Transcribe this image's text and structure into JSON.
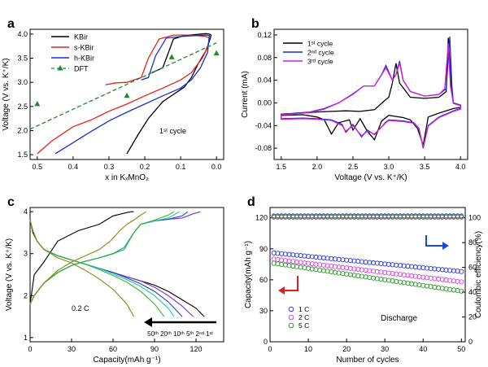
{
  "chart_data": [
    {
      "panel": "a",
      "type": "line",
      "xlabel": "x in KₓMnO₂",
      "ylabel": "Voltage (V vs. K⁺/K)",
      "xlim": [
        0.52,
        -0.02
      ],
      "ylim": [
        1.4,
        4.1
      ],
      "xticks": [
        "0.5",
        "0.4",
        "0.3",
        "0.2",
        "0.1",
        "0.0"
      ],
      "yticks": [
        "1.5",
        "2.0",
        "2.5",
        "3.0",
        "3.5",
        "4.0"
      ],
      "annotation": "1ˢᵗ cycle",
      "legend_position": "top-right",
      "series": [
        {
          "name": "KBir",
          "color": "#000000",
          "x": [
            0.25,
            0.22,
            0.19,
            0.15,
            0.12,
            0.09,
            0.07,
            0.05,
            0.03,
            0.02,
            0.015,
            0.02,
            0.03,
            0.06,
            0.09,
            0.12,
            0.15,
            0.18
          ],
          "y": [
            1.52,
            1.9,
            2.25,
            2.6,
            2.75,
            2.9,
            3.1,
            3.4,
            3.65,
            3.85,
            3.98,
            4.0,
            4.01,
            3.99,
            3.97,
            3.9,
            3.3,
            3.2
          ]
        },
        {
          "name": "s-KBir",
          "color": "#e8201a",
          "x": [
            0.5,
            0.46,
            0.4,
            0.35,
            0.3,
            0.25,
            0.2,
            0.15,
            0.1,
            0.07,
            0.04,
            0.025,
            0.02,
            0.03,
            0.07,
            0.12,
            0.16,
            0.19,
            0.21,
            0.25,
            0.28,
            0.31
          ],
          "y": [
            1.52,
            1.78,
            2.08,
            2.22,
            2.4,
            2.55,
            2.72,
            2.88,
            3.05,
            3.2,
            3.5,
            3.72,
            3.92,
            3.95,
            3.98,
            3.98,
            3.9,
            3.5,
            3.1,
            3.0,
            2.99,
            2.95
          ]
        },
        {
          "name": "h-KBir",
          "color": "#1a2ed8",
          "x": [
            0.45,
            0.4,
            0.35,
            0.3,
            0.25,
            0.2,
            0.15,
            0.1,
            0.07,
            0.045,
            0.025,
            0.02,
            0.03,
            0.06,
            0.1,
            0.14,
            0.17,
            0.19,
            0.21
          ],
          "y": [
            1.52,
            1.75,
            1.98,
            2.2,
            2.38,
            2.55,
            2.72,
            2.88,
            3.05,
            3.3,
            3.62,
            3.97,
            3.98,
            3.97,
            3.95,
            3.92,
            3.55,
            3.1,
            3.05
          ]
        },
        {
          "name": "DFT",
          "color": "#1e8a2e",
          "dashed": true,
          "fit_x": [
            0.52,
            0.0
          ],
          "fit_y": [
            2.03,
            3.82
          ],
          "points_x": [
            0.5,
            0.25,
            0.125,
            0.0
          ],
          "points_y": [
            2.55,
            2.72,
            3.52,
            3.6
          ]
        }
      ]
    },
    {
      "panel": "b",
      "type": "line",
      "xlabel": "Voltage (V vs. K⁺/K)",
      "ylabel": "Current (mA)",
      "xlim": [
        1.4,
        4.1
      ],
      "ylim": [
        -0.1,
        0.13
      ],
      "xticks": [
        "1.5",
        "2.0",
        "2.5",
        "3.0",
        "3.5",
        "4.0"
      ],
      "yticks": [
        "-0.08",
        "-0.04",
        "0.00",
        "0.04",
        "0.08",
        "0.12"
      ],
      "legend_position": "top-left",
      "series": [
        {
          "name": "1ˢᵗ cycle",
          "color": "#000000",
          "x": [
            1.5,
            1.8,
            2.0,
            2.1,
            2.2,
            2.3,
            2.45,
            2.5,
            2.6,
            2.7,
            2.8,
            2.9,
            3.0,
            3.1,
            3.2,
            3.3,
            3.4,
            3.48,
            3.55,
            3.7,
            3.9,
            4.0,
            4.0,
            3.9,
            3.87,
            3.83,
            3.8,
            3.7,
            3.5,
            3.3,
            3.15,
            3.1,
            3.05,
            3.0,
            2.95,
            2.8,
            2.6,
            2.4,
            2.2,
            2.0,
            1.8,
            1.5
          ],
          "y": [
            -0.022,
            -0.021,
            -0.025,
            -0.03,
            -0.055,
            -0.035,
            -0.03,
            -0.048,
            -0.028,
            -0.05,
            -0.065,
            -0.032,
            -0.022,
            -0.024,
            -0.026,
            -0.03,
            -0.045,
            -0.075,
            -0.025,
            -0.018,
            -0.01,
            -0.008,
            -0.004,
            0.0,
            0.03,
            0.115,
            0.02,
            0.01,
            0.008,
            0.01,
            0.035,
            0.07,
            0.035,
            0.01,
            0.005,
            -0.012,
            -0.015,
            -0.014,
            -0.015,
            -0.016,
            -0.018,
            -0.02
          ]
        },
        {
          "name": "2ⁿᵈ cycle",
          "color": "#1a2ed8",
          "x": [
            1.5,
            1.8,
            2.0,
            2.2,
            2.35,
            2.4,
            2.5,
            2.62,
            2.7,
            2.8,
            2.95,
            3.0,
            3.2,
            3.35,
            3.42,
            3.48,
            3.55,
            3.7,
            3.9,
            4.0,
            4.0,
            3.9,
            3.88,
            3.85,
            3.8,
            3.7,
            3.5,
            3.3,
            3.2,
            3.15,
            3.1,
            3.05,
            2.96,
            2.9,
            2.8,
            2.65,
            2.5,
            2.3,
            2.1,
            1.9,
            1.7,
            1.5
          ],
          "y": [
            -0.028,
            -0.027,
            -0.028,
            -0.03,
            -0.038,
            -0.052,
            -0.038,
            -0.06,
            -0.048,
            -0.056,
            -0.035,
            -0.03,
            -0.032,
            -0.035,
            -0.045,
            -0.08,
            -0.04,
            -0.025,
            -0.014,
            -0.01,
            -0.004,
            0.0,
            0.03,
            0.117,
            0.025,
            0.015,
            0.012,
            0.02,
            0.04,
            0.074,
            0.05,
            0.04,
            0.066,
            0.05,
            0.03,
            0.03,
            0.016,
            0.0,
            -0.01,
            -0.016,
            -0.018,
            -0.02
          ]
        },
        {
          "name": "3ʳᵈ cycle",
          "color": "#d81ad8",
          "x": [
            1.5,
            1.8,
            2.0,
            2.2,
            2.35,
            2.4,
            2.5,
            2.62,
            2.7,
            2.8,
            2.95,
            3.0,
            3.2,
            3.35,
            3.42,
            3.48,
            3.55,
            3.7,
            3.9,
            4.0,
            4.0,
            3.9,
            3.86,
            3.83,
            3.78,
            3.7,
            3.5,
            3.3,
            3.2,
            3.15,
            3.1,
            3.05,
            2.96,
            2.9,
            2.8,
            2.65,
            2.5,
            2.3,
            2.1,
            1.9,
            1.7,
            1.5
          ],
          "y": [
            -0.029,
            -0.028,
            -0.029,
            -0.031,
            -0.04,
            -0.05,
            -0.04,
            -0.058,
            -0.05,
            -0.055,
            -0.036,
            -0.031,
            -0.033,
            -0.036,
            -0.046,
            -0.078,
            -0.041,
            -0.026,
            -0.015,
            -0.011,
            -0.005,
            -0.001,
            0.03,
            0.105,
            0.025,
            0.015,
            0.012,
            0.02,
            0.04,
            0.07,
            0.05,
            0.04,
            0.062,
            0.05,
            0.03,
            0.03,
            0.015,
            0.0,
            -0.011,
            -0.017,
            -0.019,
            -0.021
          ]
        }
      ]
    },
    {
      "panel": "c",
      "type": "line",
      "xlabel": "Capacity(mAh g⁻¹)",
      "ylabel": "Voltage (V vs. K⁺/K)",
      "xlim": [
        0,
        140
      ],
      "ylim": [
        0.9,
        4.1
      ],
      "xticks": [
        "0",
        "30",
        "60",
        "90",
        "120"
      ],
      "yticks": [
        "1",
        "2",
        "3",
        "4"
      ],
      "annotation": "0.2 C",
      "arrow_label": "50ᵗʰ 20ᵗʰ 10ᵗʰ 5ᵗʰ 2ⁿᵈ 1ˢᵗ",
      "series": [
        {
          "name": "1st",
          "color": "#000000",
          "charge_x": [
            0,
            3,
            10,
            20,
            35,
            50,
            60,
            70,
            73,
            75
          ],
          "charge_y": [
            1.8,
            2.5,
            2.8,
            3.3,
            3.55,
            3.7,
            3.9,
            3.98,
            4.0,
            4.0
          ],
          "discharge_x": [
            0,
            2,
            5,
            10,
            20,
            30,
            40,
            50,
            60,
            70,
            80,
            90,
            100,
            110,
            120,
            126
          ],
          "discharge_y": [
            3.8,
            3.5,
            3.3,
            3.1,
            2.95,
            2.85,
            2.75,
            2.65,
            2.55,
            2.45,
            2.35,
            2.25,
            2.1,
            1.9,
            1.7,
            1.5
          ]
        },
        {
          "name": "2nd",
          "color": "#7b2fd8",
          "charge_x": [
            0,
            3,
            10,
            20,
            30,
            40,
            50,
            60,
            68,
            75,
            80,
            90,
            100,
            110,
            118,
            123
          ],
          "charge_y": [
            1.8,
            2.0,
            2.3,
            2.55,
            2.72,
            2.82,
            2.9,
            3.0,
            3.1,
            3.5,
            3.7,
            3.78,
            3.82,
            3.85,
            3.95,
            4.0
          ],
          "discharge_x": [
            0,
            2,
            5,
            10,
            20,
            30,
            40,
            50,
            60,
            70,
            80,
            90,
            100,
            110,
            118
          ],
          "discharge_y": [
            3.8,
            3.55,
            3.3,
            3.1,
            2.95,
            2.85,
            2.75,
            2.65,
            2.55,
            2.45,
            2.35,
            2.2,
            2.0,
            1.75,
            1.5
          ]
        },
        {
          "name": "5th",
          "color": "#1a48c8",
          "charge_x": [
            0,
            3,
            10,
            20,
            30,
            40,
            50,
            60,
            68,
            75,
            80,
            90,
            100,
            110,
            114
          ],
          "charge_y": [
            1.8,
            2.0,
            2.3,
            2.55,
            2.72,
            2.82,
            2.9,
            3.0,
            3.1,
            3.5,
            3.7,
            3.78,
            3.82,
            3.9,
            4.0
          ],
          "discharge_x": [
            0,
            2,
            5,
            10,
            20,
            30,
            40,
            50,
            60,
            70,
            80,
            90,
            100,
            110
          ],
          "discharge_y": [
            3.8,
            3.55,
            3.3,
            3.1,
            2.95,
            2.85,
            2.75,
            2.65,
            2.55,
            2.42,
            2.28,
            2.1,
            1.85,
            1.5
          ]
        },
        {
          "name": "10th",
          "color": "#1ec4b0",
          "charge_x": [
            0,
            3,
            10,
            20,
            30,
            40,
            50,
            60,
            68,
            75,
            80,
            90,
            100,
            108
          ],
          "charge_y": [
            1.8,
            2.0,
            2.3,
            2.55,
            2.72,
            2.82,
            2.9,
            3.0,
            3.1,
            3.5,
            3.7,
            3.78,
            3.85,
            4.0
          ],
          "discharge_x": [
            0,
            2,
            5,
            10,
            20,
            30,
            40,
            50,
            60,
            70,
            80,
            90,
            100,
            104
          ],
          "discharge_y": [
            3.8,
            3.55,
            3.3,
            3.1,
            2.95,
            2.85,
            2.75,
            2.65,
            2.52,
            2.38,
            2.22,
            2.0,
            1.7,
            1.5
          ]
        },
        {
          "name": "20th",
          "color": "#2db52d",
          "charge_x": [
            0,
            3,
            10,
            20,
            30,
            40,
            50,
            60,
            68,
            75,
            80,
            90,
            100,
            104
          ],
          "charge_y": [
            1.8,
            2.0,
            2.3,
            2.55,
            2.72,
            2.82,
            2.9,
            3.0,
            3.15,
            3.5,
            3.7,
            3.8,
            3.92,
            4.0
          ],
          "discharge_x": [
            0,
            2,
            5,
            10,
            20,
            30,
            40,
            50,
            60,
            70,
            80,
            90,
            97
          ],
          "discharge_y": [
            3.8,
            3.55,
            3.3,
            3.1,
            2.95,
            2.85,
            2.75,
            2.62,
            2.48,
            2.32,
            2.1,
            1.8,
            1.5
          ]
        },
        {
          "name": "50th",
          "color": "#8a8a12",
          "charge_x": [
            0,
            3,
            10,
            20,
            30,
            40,
            50,
            58,
            65,
            70,
            75,
            80,
            84
          ],
          "charge_y": [
            1.8,
            2.0,
            2.3,
            2.6,
            2.8,
            2.95,
            3.1,
            3.3,
            3.55,
            3.7,
            3.8,
            3.92,
            4.0
          ],
          "discharge_x": [
            0,
            2,
            5,
            10,
            20,
            30,
            40,
            50,
            60,
            70,
            75
          ],
          "discharge_y": [
            3.8,
            3.55,
            3.3,
            3.1,
            2.9,
            2.78,
            2.6,
            2.4,
            2.15,
            1.8,
            1.5
          ]
        }
      ]
    },
    {
      "panel": "d",
      "type": "scatter",
      "xlabel": "Number of cycles",
      "ylabel": "Capacity(mAh g⁻¹)",
      "ylabel_right": "Coulombic efficiency(%)",
      "xlim": [
        0,
        51
      ],
      "ylim": [
        0,
        130
      ],
      "ylim_right": [
        0,
        108.3
      ],
      "xticks": [
        "0",
        "10",
        "20",
        "30",
        "40",
        "50"
      ],
      "yticks": [
        "0",
        "30",
        "60",
        "90",
        "120"
      ],
      "yticks_right": [
        "0",
        "20",
        "40",
        "60",
        "80",
        "100"
      ],
      "annotation": "Discharge",
      "legend_position": "bottom-left",
      "series": [
        {
          "name": "1 C",
          "color": "#2a3ae0",
          "capacity_start": 86,
          "capacity_end": 68,
          "efficiency": 101.5
        },
        {
          "name": "2 C",
          "color": "#e040e0",
          "capacity_start": 80,
          "capacity_end": 58,
          "efficiency": 101
        },
        {
          "name": "5 C",
          "color": "#2a9a2a",
          "capacity_start": 76,
          "capacity_end": 49,
          "efficiency": 100.5
        }
      ]
    }
  ]
}
